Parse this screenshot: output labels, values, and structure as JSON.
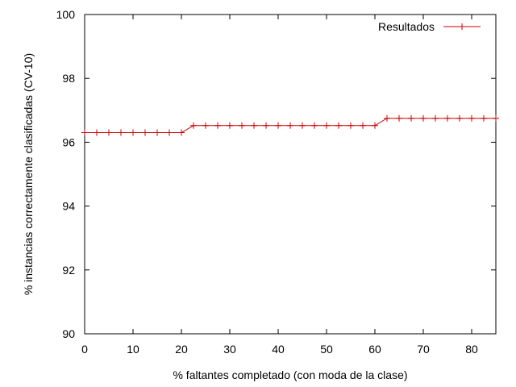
{
  "chart_data": {
    "type": "line",
    "title": "",
    "xlabel": "% faltantes completado (con moda de la clase)",
    "ylabel": "% instancias correctamente clasificadas (CV-10)",
    "xlim": [
      0,
      85
    ],
    "ylim": [
      90,
      100
    ],
    "xticks": [
      0,
      10,
      20,
      30,
      40,
      50,
      60,
      70,
      80
    ],
    "yticks": [
      90,
      92,
      94,
      96,
      98,
      100
    ],
    "xtick_labels": [
      "0",
      "10",
      "20",
      "30",
      "40",
      "50",
      "60",
      "70",
      "80"
    ],
    "ytick_labels": [
      "90",
      "92",
      "94",
      "96",
      "98",
      "100"
    ],
    "grid": false,
    "legend_position": "top-right",
    "series": [
      {
        "name": "Resultados",
        "color": "#cc0000",
        "marker": "plus",
        "x": [
          0,
          2.5,
          5,
          7.5,
          10,
          12.5,
          15,
          17.5,
          20,
          22.5,
          25,
          27.5,
          30,
          32.5,
          35,
          37.5,
          40,
          42.5,
          45,
          47.5,
          50,
          52.5,
          55,
          57.5,
          60,
          62.5,
          65,
          67.5,
          70,
          72.5,
          75,
          77.5,
          80,
          82.5,
          85
        ],
        "y": [
          96.3,
          96.3,
          96.3,
          96.3,
          96.3,
          96.3,
          96.3,
          96.3,
          96.3,
          96.52,
          96.52,
          96.52,
          96.52,
          96.52,
          96.52,
          96.52,
          96.52,
          96.52,
          96.52,
          96.52,
          96.52,
          96.52,
          96.52,
          96.52,
          96.52,
          96.75,
          96.75,
          96.75,
          96.75,
          96.75,
          96.75,
          96.75,
          96.75,
          96.75,
          96.75
        ]
      }
    ]
  }
}
